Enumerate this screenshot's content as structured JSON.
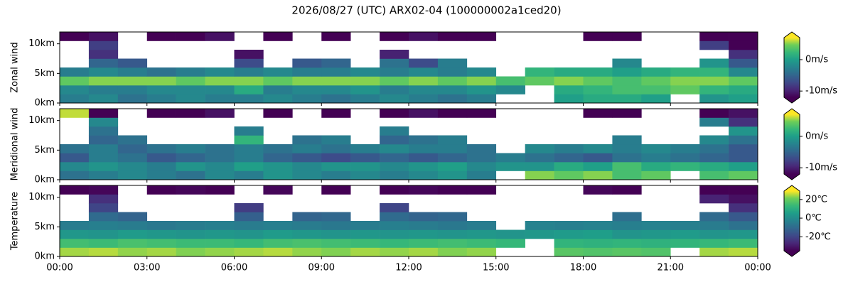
{
  "title": "2026/08/27 (UTC) ARX02-04 (100000002a1ced20)",
  "xlim": [
    0,
    24
  ],
  "xticks": [
    {
      "value": 0,
      "label": "00:00"
    },
    {
      "value": 3,
      "label": "03:00"
    },
    {
      "value": 6,
      "label": "06:00"
    },
    {
      "value": 9,
      "label": "09:00"
    },
    {
      "value": 12,
      "label": "12:00"
    },
    {
      "value": 15,
      "label": "15:00"
    },
    {
      "value": 18,
      "label": "18:00"
    },
    {
      "value": 21,
      "label": "21:00"
    },
    {
      "value": 24,
      "label": "00:00"
    }
  ],
  "chart_data": [
    {
      "type": "heatmap",
      "ylabel": "Zonal wind",
      "colormap": "viridis",
      "clim": [
        -12,
        7
      ],
      "ylim": [
        0,
        12
      ],
      "yticks": [
        {
          "value": 0,
          "label": "0km"
        },
        {
          "value": 5,
          "label": "5km"
        },
        {
          "value": 10,
          "label": "10km"
        }
      ],
      "cticks": [
        {
          "value": -10,
          "label": "-10m/s"
        },
        {
          "value": 0,
          "label": "0m/s"
        }
      ],
      "xbins": [
        0,
        1,
        2,
        3,
        4,
        5,
        6,
        7,
        8,
        9,
        10,
        11,
        12,
        13,
        14,
        15,
        16,
        17,
        18,
        19,
        20,
        21,
        22,
        23,
        24
      ],
      "ybins": [
        0,
        1.5,
        3,
        4.5,
        6,
        7.5,
        9,
        10.5,
        12
      ],
      "values": [
        [
          -3,
          -2,
          -4,
          -3,
          -2,
          -3,
          -3,
          -2,
          -3,
          -4,
          -3,
          -2,
          -3,
          -4,
          -3,
          null,
          null,
          0,
          1,
          1,
          0,
          null,
          -1,
          0
        ],
        [
          -2,
          -3,
          -3,
          -2,
          -2,
          -2,
          1,
          -3,
          -2,
          -2,
          -1,
          -3,
          -2,
          -2,
          -1,
          -2,
          null,
          1,
          2,
          3,
          3,
          4,
          2,
          1
        ],
        [
          4,
          5,
          5,
          5,
          4,
          5,
          5,
          4,
          5,
          5,
          5,
          4,
          5,
          4,
          5,
          3,
          4,
          5,
          4,
          3,
          4,
          5,
          5,
          4
        ],
        [
          -3,
          -2,
          -3,
          -4,
          -3,
          -2,
          -3,
          -2,
          -3,
          -3,
          -2,
          -3,
          -2,
          -3,
          -2,
          null,
          2,
          1,
          1,
          0,
          1,
          2,
          2,
          -2
        ],
        [
          null,
          -5,
          -6,
          null,
          null,
          null,
          -7,
          null,
          -6,
          -5,
          null,
          -4,
          -7,
          -3,
          null,
          null,
          null,
          null,
          null,
          -2,
          null,
          null,
          -1,
          -6
        ],
        [
          null,
          -9,
          null,
          null,
          null,
          null,
          -11,
          null,
          null,
          null,
          null,
          -10,
          null,
          null,
          null,
          null,
          null,
          null,
          null,
          null,
          null,
          null,
          null,
          -9
        ],
        [
          null,
          -8,
          null,
          null,
          null,
          null,
          null,
          null,
          null,
          null,
          null,
          null,
          null,
          null,
          null,
          null,
          null,
          null,
          null,
          null,
          null,
          null,
          -8,
          -12
        ],
        [
          -12,
          -11,
          null,
          -12,
          -12,
          -11,
          null,
          -12,
          null,
          -12,
          null,
          -12,
          -11,
          -12,
          -12,
          null,
          null,
          null,
          -12,
          -12,
          null,
          null,
          -12,
          -12
        ]
      ]
    },
    {
      "type": "heatmap",
      "ylabel": "Meridional wind",
      "colormap": "viridis",
      "clim": [
        -12,
        7
      ],
      "ylim": [
        0,
        12
      ],
      "yticks": [
        {
          "value": 0,
          "label": "0km"
        },
        {
          "value": 5,
          "label": "5km"
        },
        {
          "value": 10,
          "label": "10km"
        }
      ],
      "cticks": [
        {
          "value": -10,
          "label": "-10m/s"
        },
        {
          "value": 0,
          "label": "0m/s"
        }
      ],
      "xbins": [
        0,
        1,
        2,
        3,
        4,
        5,
        6,
        7,
        8,
        9,
        10,
        11,
        12,
        13,
        14,
        15,
        16,
        17,
        18,
        19,
        20,
        21,
        22,
        23,
        24
      ],
      "ybins": [
        0,
        1.5,
        3,
        4.5,
        6,
        7.5,
        9,
        10.5,
        12
      ],
      "values": [
        [
          -4,
          -3,
          -2,
          -3,
          -4,
          -2,
          -3,
          -1,
          -2,
          -3,
          -2,
          -3,
          -2,
          -1,
          -3,
          null,
          5,
          4,
          5,
          3,
          4,
          null,
          3,
          4
        ],
        [
          -2,
          -1,
          -2,
          -3,
          -1,
          -2,
          0,
          -1,
          -2,
          -1,
          -1,
          -2,
          -1,
          0,
          -2,
          -1,
          -1,
          1,
          0,
          3,
          1,
          2,
          1,
          0
        ],
        [
          -6,
          -3,
          -4,
          -6,
          -5,
          -4,
          -3,
          -5,
          -6,
          -7,
          -6,
          -5,
          -6,
          -5,
          -4,
          -3,
          -4,
          -5,
          -6,
          -4,
          -3,
          -4,
          -5,
          -6
        ],
        [
          -4,
          -3,
          -5,
          -4,
          -3,
          -4,
          -3,
          -4,
          -3,
          -4,
          -3,
          -2,
          -3,
          -3,
          -4,
          null,
          -2,
          -3,
          -2,
          -3,
          -2,
          -3,
          -4,
          -6
        ],
        [
          null,
          -5,
          -4,
          null,
          null,
          null,
          2,
          null,
          -4,
          -3,
          null,
          -5,
          -4,
          -3,
          null,
          null,
          null,
          null,
          null,
          -3,
          null,
          null,
          -2,
          -4
        ],
        [
          null,
          -4,
          null,
          null,
          null,
          null,
          -3,
          null,
          null,
          null,
          null,
          -3,
          null,
          null,
          null,
          null,
          null,
          null,
          null,
          null,
          null,
          null,
          null,
          -1
        ],
        [
          null,
          -2,
          null,
          null,
          null,
          null,
          null,
          null,
          null,
          null,
          null,
          null,
          null,
          null,
          null,
          null,
          null,
          null,
          null,
          null,
          null,
          null,
          -3,
          -9
        ],
        [
          6,
          -12,
          null,
          -12,
          -12,
          -11,
          null,
          -12,
          null,
          -12,
          null,
          -12,
          -11,
          -12,
          -12,
          null,
          null,
          null,
          -12,
          -12,
          null,
          null,
          -12,
          -11
        ]
      ]
    },
    {
      "type": "heatmap",
      "ylabel": "Temperature",
      "colormap": "viridis",
      "clim": [
        -35,
        29
      ],
      "ylim": [
        0,
        12
      ],
      "yticks": [
        {
          "value": 0,
          "label": "0km"
        },
        {
          "value": 5,
          "label": "5km"
        },
        {
          "value": 10,
          "label": "10km"
        }
      ],
      "cticks": [
        {
          "value": -20,
          "label": "-20℃"
        },
        {
          "value": 0,
          "label": "0℃"
        },
        {
          "value": 20,
          "label": "20℃"
        }
      ],
      "xbins": [
        0,
        1,
        2,
        3,
        4,
        5,
        6,
        7,
        8,
        9,
        10,
        11,
        12,
        13,
        14,
        15,
        16,
        17,
        18,
        19,
        20,
        21,
        22,
        23,
        24
      ],
      "ybins": [
        0,
        1.5,
        3,
        4.5,
        6,
        7.5,
        9,
        10.5,
        12
      ],
      "values": [
        [
          24,
          25,
          23,
          24,
          22,
          23,
          24,
          25,
          23,
          22,
          24,
          23,
          24,
          22,
          23,
          null,
          null,
          18,
          17,
          18,
          17,
          null,
          24,
          25
        ],
        [
          15,
          14,
          16,
          15,
          14,
          14,
          13,
          15,
          16,
          15,
          14,
          13,
          14,
          15,
          14,
          13,
          null,
          12,
          11,
          12,
          11,
          12,
          13,
          14
        ],
        [
          3,
          2,
          4,
          3,
          2,
          3,
          2,
          4,
          3,
          2,
          3,
          2,
          3,
          2,
          3,
          2,
          3,
          4,
          5,
          2,
          3,
          4,
          2,
          3
        ],
        [
          -5,
          -4,
          -5,
          -6,
          -5,
          -4,
          -5,
          -4,
          -5,
          -6,
          -5,
          -4,
          -5,
          -6,
          -5,
          null,
          -3,
          -4,
          -3,
          -4,
          -3,
          -4,
          -5,
          -8
        ],
        [
          null,
          -10,
          -12,
          null,
          null,
          null,
          -13,
          null,
          -12,
          -11,
          null,
          -10,
          -12,
          -11,
          null,
          null,
          null,
          null,
          null,
          -9,
          null,
          null,
          -10,
          -15
        ],
        [
          null,
          -20,
          null,
          null,
          null,
          null,
          -22,
          null,
          null,
          null,
          null,
          -20,
          null,
          null,
          null,
          null,
          null,
          null,
          null,
          null,
          null,
          null,
          null,
          -25
        ],
        [
          null,
          -25,
          null,
          null,
          null,
          null,
          null,
          null,
          null,
          null,
          null,
          null,
          null,
          null,
          null,
          null,
          null,
          null,
          null,
          null,
          null,
          null,
          -28,
          -32
        ],
        [
          -35,
          -34,
          null,
          -35,
          -34,
          -35,
          null,
          -34,
          null,
          -35,
          null,
          -35,
          -34,
          -35,
          -35,
          null,
          null,
          null,
          -34,
          -35,
          null,
          null,
          -35,
          -35
        ]
      ]
    }
  ]
}
